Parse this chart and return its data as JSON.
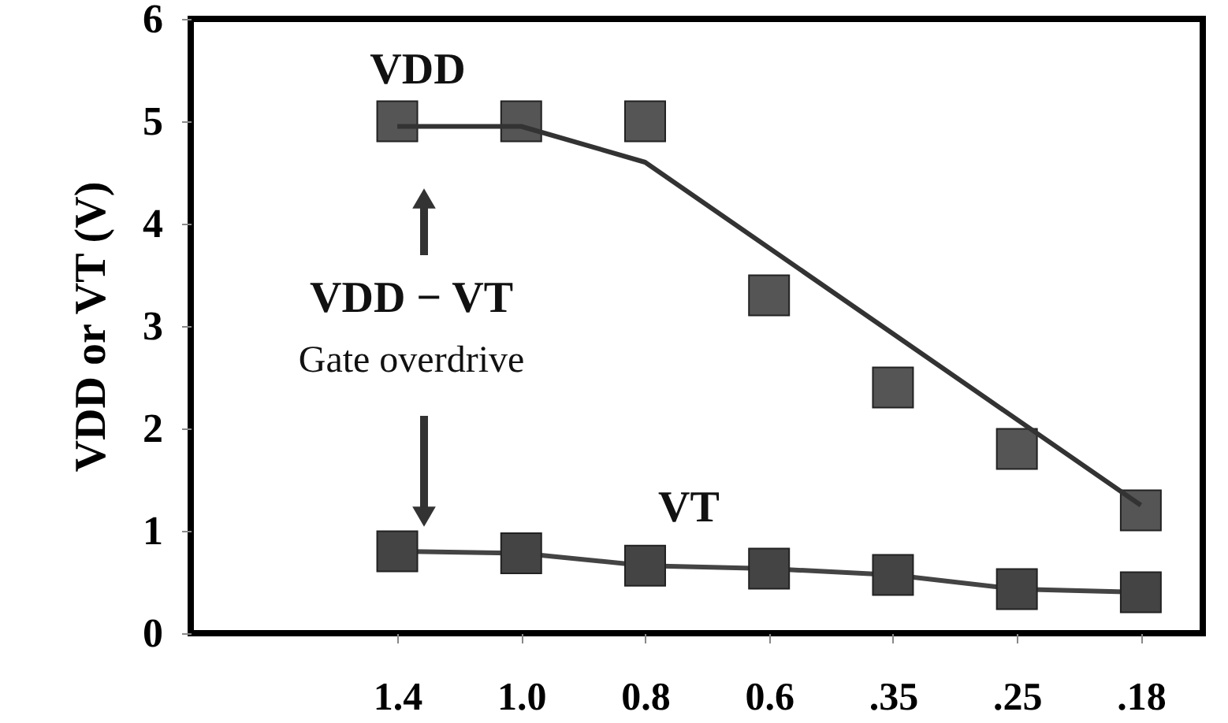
{
  "chart_data": {
    "type": "scatter",
    "ylabel": "VDD or VT (V)",
    "categories": [
      "1.4",
      "1.0",
      "0.8",
      "0.6",
      ".35",
      ".25",
      ".18"
    ],
    "ylim": [
      0,
      6
    ],
    "yticks": [
      0,
      1,
      2,
      3,
      4,
      5,
      6
    ],
    "grid": false,
    "marker": "square",
    "series": [
      {
        "name": "VDD",
        "color": "#555555",
        "values": [
          5.0,
          5.0,
          5.0,
          3.3,
          2.4,
          1.8,
          1.2
        ]
      },
      {
        "type": "line",
        "color": "#333333",
        "x": [
          "1.4",
          "1.0",
          "0.8",
          ".18"
        ],
        "values": [
          4.95,
          4.95,
          4.6,
          1.25
        ],
        "marker": "none"
      },
      {
        "name": "VT",
        "type": "line",
        "color": "#444444",
        "values": [
          0.8,
          0.78,
          0.66,
          0.63,
          0.57,
          0.43,
          0.4
        ]
      }
    ],
    "annotations": [
      "VDD − VT",
      "Gate overdrive"
    ]
  }
}
